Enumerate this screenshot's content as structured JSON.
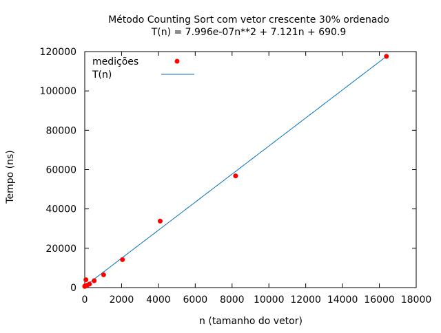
{
  "chart_data": {
    "type": "scatter",
    "title": "Método Counting Sort com vetor crescente 30% ordenado",
    "subtitle": "T(n) = 7.996e-07n**2 + 7.121n + 690.9",
    "xlabel": "n (tamanho do vetor)",
    "ylabel": "Tempo (ns)",
    "xlim": [
      0,
      18000
    ],
    "ylim": [
      0,
      120000
    ],
    "x_ticks": [
      "0",
      "2000",
      "4000",
      "6000",
      "8000",
      "10000",
      "12000",
      "14000",
      "16000",
      "18000"
    ],
    "y_ticks": [
      "0",
      "20000",
      "40000",
      "60000",
      "80000",
      "100000",
      "120000"
    ],
    "grid": false,
    "legend_position": "top-left",
    "series": [
      {
        "name": "medições",
        "kind": "points",
        "color": "#ff0000",
        "x": [
          1,
          2,
          4,
          8,
          16,
          32,
          64,
          128,
          256,
          512,
          1024,
          2048,
          4096,
          8192,
          16384
        ],
        "y": [
          600,
          650,
          700,
          750,
          800,
          900,
          4000,
          1200,
          1800,
          3500,
          6500,
          14200,
          33800,
          56800,
          117600
        ]
      },
      {
        "name": "T(n)",
        "kind": "fit",
        "color": "#0072bd",
        "coefficients": {
          "a": 7.996e-07,
          "b": 7.121,
          "c": 690.9
        }
      }
    ]
  }
}
